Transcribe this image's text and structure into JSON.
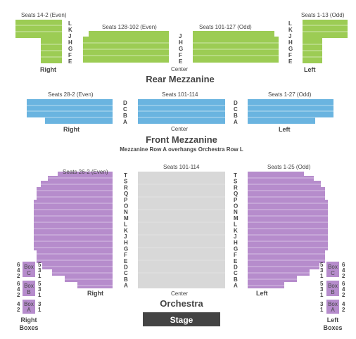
{
  "rear_mezzanine": {
    "title": "Rear Mezzanine",
    "left_label": "Seats 14-2 (Even)",
    "center_left_label": "Seats 128-102 (Even)",
    "center_right_label": "Seats 101-127 (Odd)",
    "right_label": "Seats 1-13 (Odd)",
    "rows_side": [
      "L",
      "K",
      "J",
      "H",
      "G",
      "F",
      "E"
    ],
    "rows_center": [
      "J",
      "H",
      "G",
      "F",
      "E"
    ],
    "section_right": "Right",
    "section_center": "Center",
    "section_left": "Left",
    "color": "#9ccc54"
  },
  "front_mezzanine": {
    "title": "Front Mezzanine",
    "note": "Mezzanine Row A overhangs Orchestra Row L",
    "left_label": "Seats 28-2 (Even)",
    "center_label": "Seats 101-114",
    "right_label": "Seats 1-27 (Odd)",
    "rows": [
      "D",
      "C",
      "B",
      "A"
    ],
    "section_right": "Right",
    "section_center": "Center",
    "section_left": "Left",
    "color": "#6ab4e0"
  },
  "orchestra": {
    "title": "Orchestra",
    "left_label": "Seats 26-2 (Even)",
    "center_label": "Seats 101-114",
    "right_label": "Seats 1-25 (Odd)",
    "rows": [
      "T",
      "S",
      "R",
      "Q",
      "P",
      "O",
      "N",
      "M",
      "L",
      "K",
      "J",
      "H",
      "G",
      "F",
      "E",
      "D",
      "C",
      "B",
      "A"
    ],
    "section_right": "Right",
    "section_center": "Center",
    "section_left": "Left",
    "color": "#b68ccc",
    "center_color": "#d8d8d8"
  },
  "boxes": {
    "right_title_1": "Right",
    "right_title_2": "Boxes",
    "left_title_1": "Left",
    "left_title_2": "Boxes",
    "right_boxes": [
      {
        "name": "Box C",
        "line1": "Box",
        "line2": "C",
        "even": [
          "6",
          "4",
          "2"
        ],
        "odd": [
          "5",
          "3",
          "1"
        ]
      },
      {
        "name": "Box B",
        "line1": "Box",
        "line2": "B",
        "even": [
          "6",
          "4",
          "2"
        ],
        "odd": [
          "5",
          "3",
          "1"
        ]
      },
      {
        "name": "Box A",
        "line1": "Box",
        "line2": "A",
        "even": [
          "4",
          "2"
        ],
        "odd": [
          "3",
          "1"
        ]
      }
    ],
    "left_boxes": [
      {
        "name": "Box C",
        "line1": "Box",
        "line2": "C",
        "odd": [
          "5",
          "3",
          "1"
        ],
        "even": [
          "6",
          "4",
          "2"
        ]
      },
      {
        "name": "Box B",
        "line1": "Box",
        "line2": "B",
        "odd": [
          "5",
          "3",
          "1"
        ],
        "even": [
          "6",
          "4",
          "2"
        ]
      },
      {
        "name": "Box A",
        "line1": "Box",
        "line2": "A",
        "odd": [
          "3",
          "1"
        ],
        "even": [
          "4",
          "2"
        ]
      }
    ]
  },
  "stage": {
    "label": "Stage",
    "color": "#444444"
  }
}
